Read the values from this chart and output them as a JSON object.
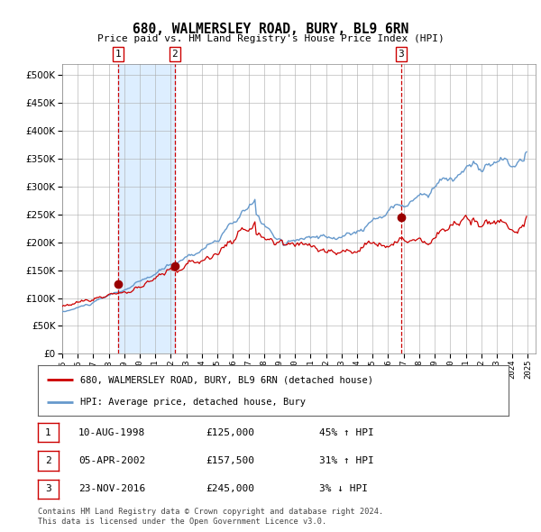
{
  "title": "680, WALMERSLEY ROAD, BURY, BL9 6RN",
  "subtitle": "Price paid vs. HM Land Registry's House Price Index (HPI)",
  "legend_line1": "680, WALMERSLEY ROAD, BURY, BL9 6RN (detached house)",
  "legend_line2": "HPI: Average price, detached house, Bury",
  "sale1_date": "10-AUG-1998",
  "sale1_price": 125000,
  "sale1_pct": "45% ↑ HPI",
  "sale2_date": "05-APR-2002",
  "sale2_price": 157500,
  "sale2_pct": "31% ↑ HPI",
  "sale3_date": "23-NOV-2016",
  "sale3_price": 245000,
  "sale3_pct": "3% ↓ HPI",
  "footer": "Contains HM Land Registry data © Crown copyright and database right 2024.\nThis data is licensed under the Open Government Licence v3.0.",
  "hpi_color": "#6699cc",
  "price_color": "#cc0000",
  "sale_dot_color": "#990000",
  "vline_color": "#cc0000",
  "shade_color": "#ddeeff",
  "grid_color": "#aaaaaa",
  "bg_color": "#ffffff",
  "ylim": [
    0,
    520000
  ],
  "yticks": [
    0,
    50000,
    100000,
    150000,
    200000,
    250000,
    300000,
    350000,
    400000,
    450000,
    500000
  ],
  "xlabel_years": [
    1995,
    1996,
    1997,
    1998,
    1999,
    2000,
    2001,
    2002,
    2003,
    2004,
    2005,
    2006,
    2007,
    2008,
    2009,
    2010,
    2011,
    2012,
    2013,
    2014,
    2015,
    2016,
    2017,
    2018,
    2019,
    2020,
    2021,
    2022,
    2023,
    2024,
    2025
  ]
}
